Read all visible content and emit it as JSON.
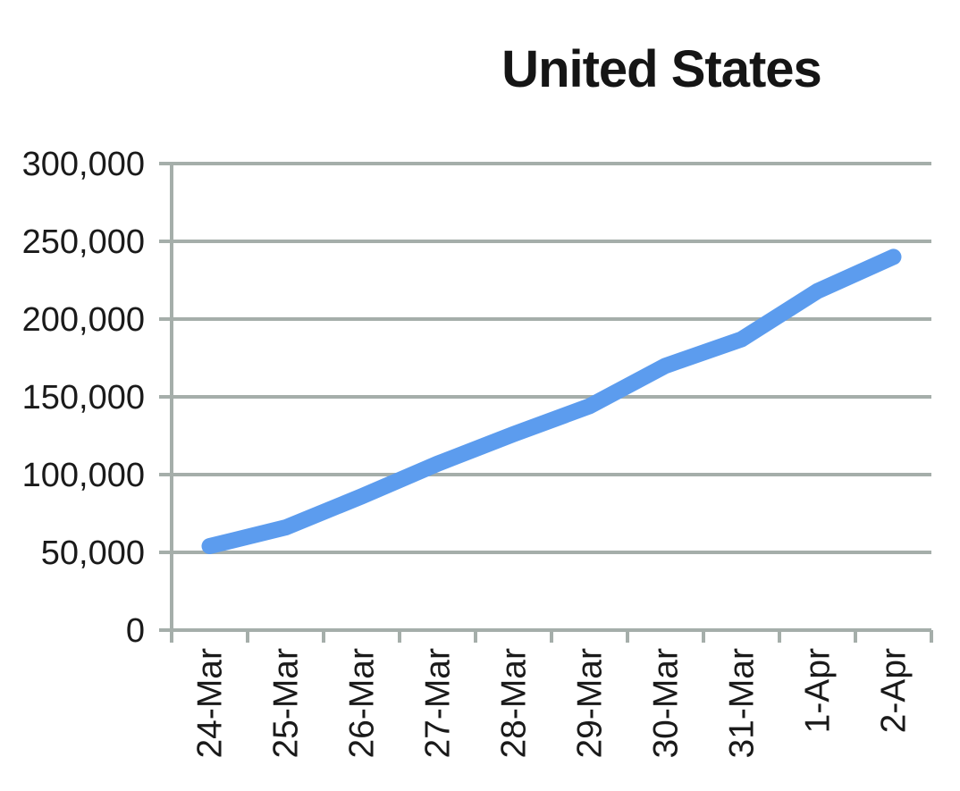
{
  "chart_data": {
    "type": "line",
    "title": "United States",
    "categories": [
      "24-Mar",
      "25-Mar",
      "26-Mar",
      "27-Mar",
      "28-Mar",
      "29-Mar",
      "30-Mar",
      "31-Mar",
      "1-Apr",
      "2-Apr"
    ],
    "series": [
      {
        "name": "United States",
        "values": [
          54000,
          66000,
          86000,
          107000,
          126000,
          144000,
          170000,
          187000,
          218000,
          240000
        ]
      }
    ],
    "xlabel": "",
    "ylabel": "",
    "ylim": [
      0,
      300000
    ],
    "ytick_step": 50000,
    "ytick_labels": [
      "0",
      "50,000",
      "100,000",
      "150,000",
      "200,000",
      "250,000",
      "300,000"
    ],
    "grid": "horizontal-only",
    "legend_position": "none",
    "x_labels_rotated_degrees": 90,
    "colors": {
      "line": "#5c9cee",
      "axis": "#a5aeaa",
      "label_text": "#1a1a1a",
      "title_text": "#151515",
      "background": "#ffffff"
    }
  }
}
